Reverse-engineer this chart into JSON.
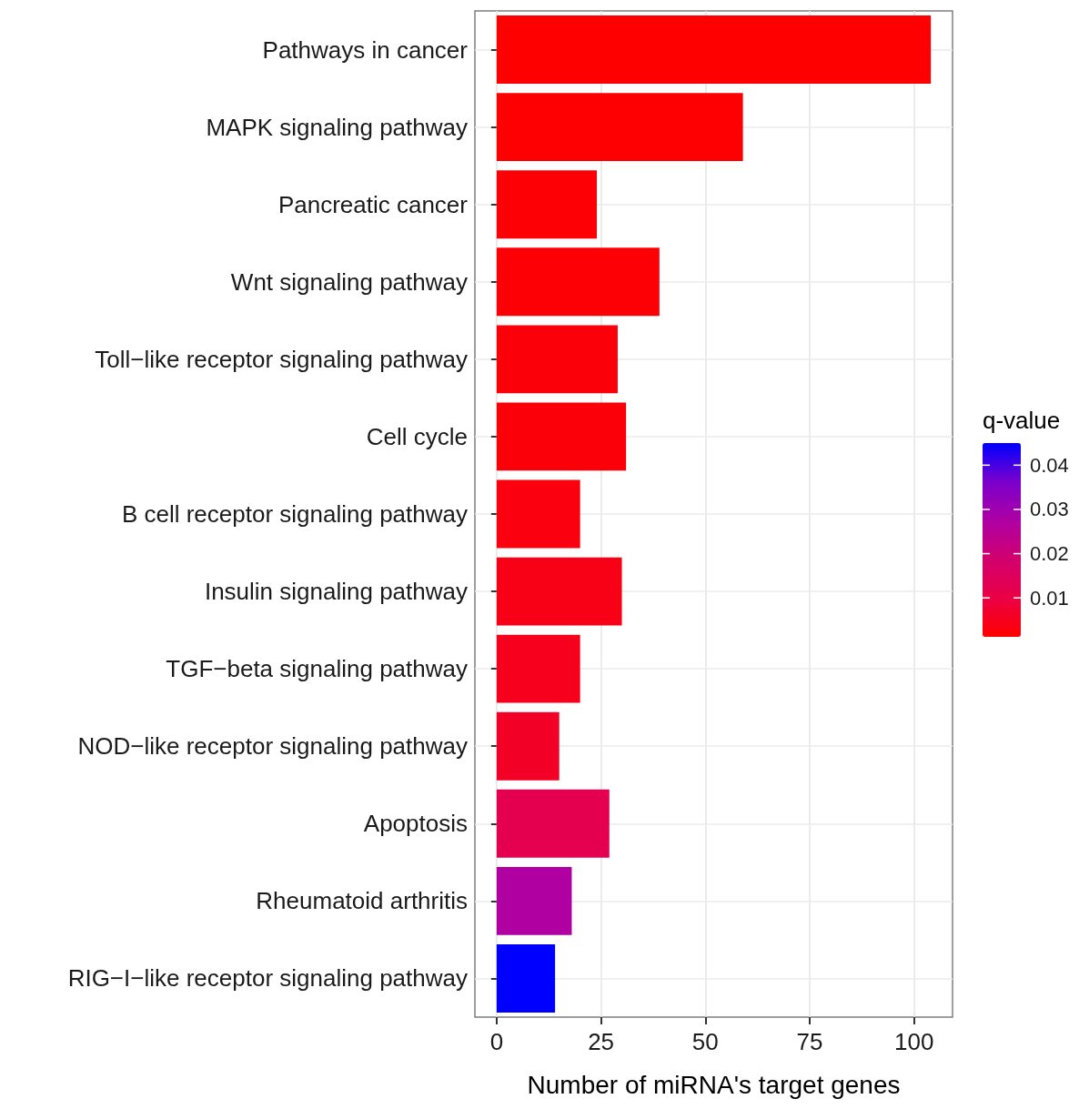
{
  "chart_data": {
    "type": "bar",
    "orientation": "horizontal",
    "xlabel": "Number of miRNA's target genes",
    "clabel": "q-value",
    "categories": [
      "Pathways in cancer",
      "MAPK signaling pathway",
      "Pancreatic cancer",
      "Wnt signaling pathway",
      "Toll−like receptor signaling pathway",
      "Cell cycle",
      "B cell receptor signaling pathway",
      "Insulin signaling pathway",
      "TGF−beta signaling pathway",
      "NOD−like receptor signaling pathway",
      "Apoptosis",
      "Rheumatoid arthritis",
      "RIG−I−like receptor signaling pathway"
    ],
    "values": [
      104,
      59,
      24,
      39,
      29,
      31,
      20,
      30,
      20,
      15,
      27,
      18,
      14
    ],
    "cvalues": [
      0.0012,
      0.0015,
      0.002,
      0.002,
      0.0025,
      0.0025,
      0.003,
      0.004,
      0.005,
      0.006,
      0.012,
      0.027,
      0.045
    ],
    "clim": [
      0.0012,
      0.045
    ],
    "cticks": [
      0.01,
      0.02,
      0.03,
      0.04
    ],
    "xlim": [
      -5.2,
      109.2
    ],
    "xticks": [
      0,
      25,
      50,
      75,
      100
    ],
    "grid": true
  }
}
